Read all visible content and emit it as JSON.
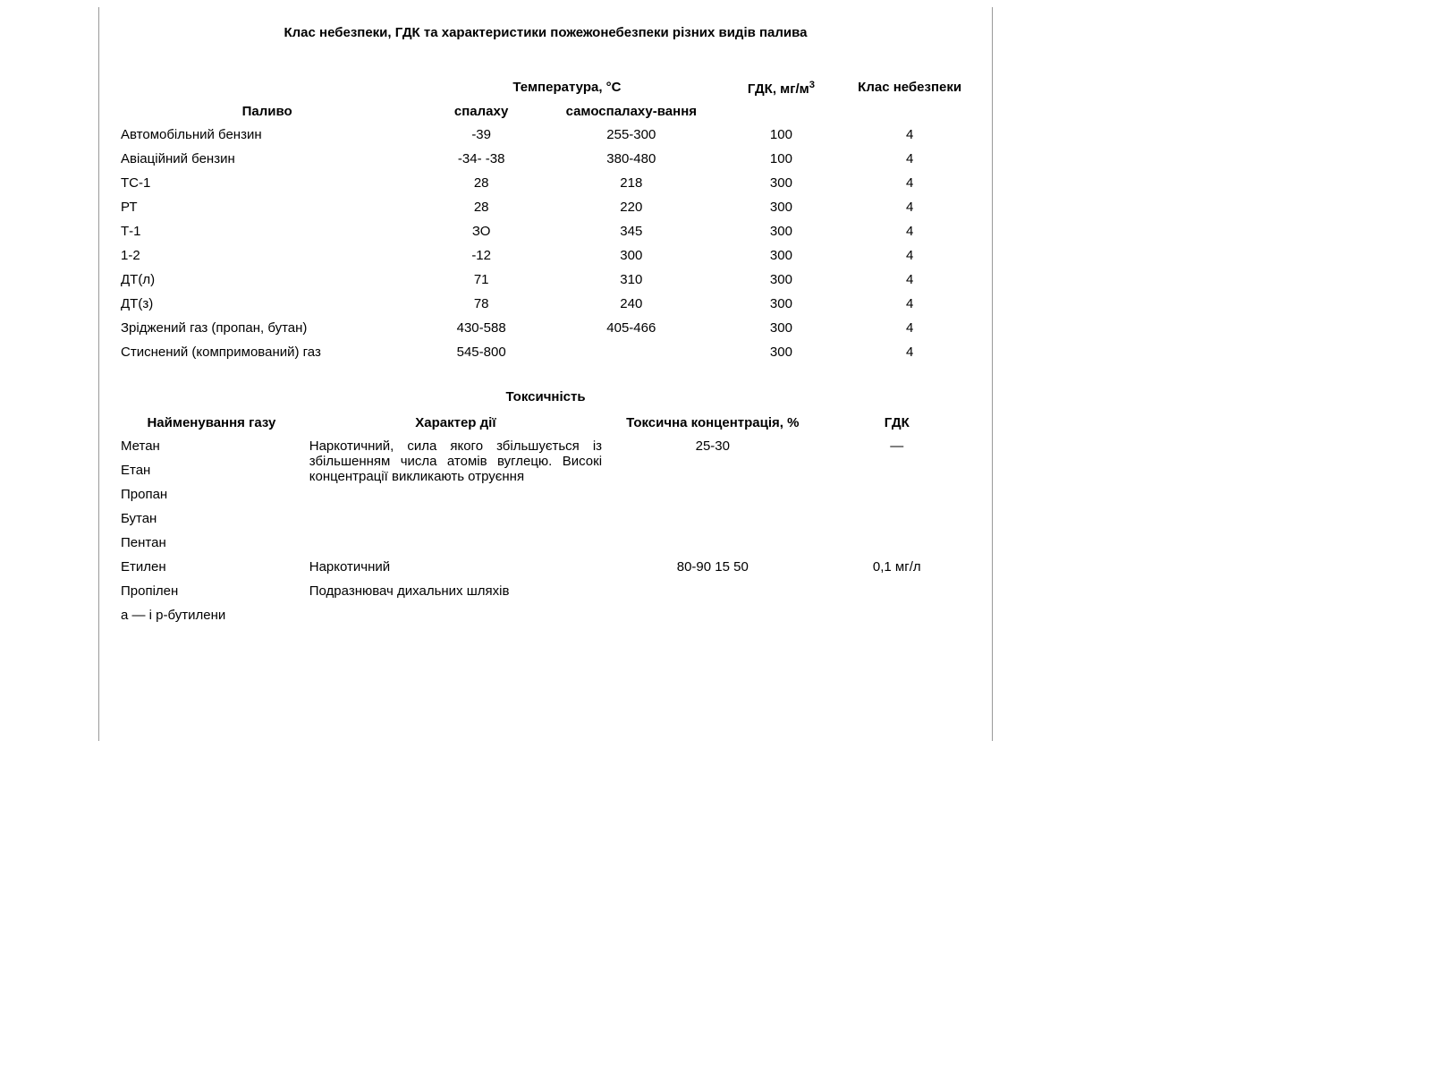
{
  "doc": {
    "title": "Клас небезпеки, ГДК та характеристики пожежонебезпеки різних видів палива",
    "background_color": "#ffffff",
    "text_color": "#000000",
    "border_color": "#999999",
    "font_family": "Arial",
    "base_font_size_pt": 11
  },
  "table1": {
    "type": "table",
    "columns": [
      {
        "key": "fuel",
        "label": "Паливо",
        "align": "left",
        "width": "35%"
      },
      {
        "key": "flash",
        "label": "спалаху",
        "align": "center",
        "width": "15%",
        "group": "temp"
      },
      {
        "key": "autoign",
        "label": "самоспалаху-вання",
        "align": "center",
        "width": "20%",
        "group": "temp"
      },
      {
        "key": "gdk",
        "label": "ГДК, мг/м",
        "label_sup": "3",
        "align": "center",
        "width": "15%"
      },
      {
        "key": "klass",
        "label": "Клас небезпеки",
        "align": "center",
        "width": "15%"
      }
    ],
    "group_temp_label": "Температура, °С",
    "rows": [
      {
        "fuel": "Автомобільний бензин",
        "flash": "-39",
        "autoign": "255-300",
        "gdk": "100",
        "klass": "4"
      },
      {
        "fuel": "Авіаційний бензин",
        "flash": "-34- -38",
        "autoign": "380-480",
        "gdk": "100",
        "klass": "4"
      },
      {
        "fuel": "ТС-1",
        "flash": "28",
        "autoign": "218",
        "gdk": "300",
        "klass": "4"
      },
      {
        "fuel": "РТ",
        "flash": "28",
        "autoign": "220",
        "gdk": "300",
        "klass": "4"
      },
      {
        "fuel": "Т-1",
        "flash": "ЗО",
        "autoign": "345",
        "gdk": "300",
        "klass": "4"
      },
      {
        "fuel": "1-2",
        "flash": "-12",
        "autoign": "300",
        "gdk": "300",
        "klass": "4"
      },
      {
        "fuel": "ДТ(л)",
        "flash": "71",
        "autoign": "310",
        "gdk": "300",
        "klass": "4"
      },
      {
        "fuel": "ДТ(з)",
        "flash": "78",
        "autoign": "240",
        "gdk": "300",
        "klass": "4"
      },
      {
        "fuel": "Зріджений газ (пропан, бутан)",
        "flash": "430-588",
        "autoign": "405-466",
        "gdk": "300",
        "klass": "4"
      },
      {
        "fuel": "Стиснений (компримований) газ",
        "flash": "545-800",
        "autoign": "",
        "gdk": "300",
        "klass": "4"
      }
    ]
  },
  "section2_title": "Токсичність",
  "table2": {
    "type": "table",
    "columns": [
      {
        "key": "gas",
        "label": "Найменування газу",
        "align": "left",
        "width": "22%",
        "header_align": "center"
      },
      {
        "key": "action",
        "label": "Характер дії",
        "align": "left",
        "width": "35%",
        "header_align": "center"
      },
      {
        "key": "conc",
        "label": "Токсична концентрація, %",
        "align": "center",
        "width": "25%",
        "header_align": "center"
      },
      {
        "key": "gdk",
        "label": "ГДК",
        "align": "center",
        "width": "18%",
        "header_align": "center"
      }
    ],
    "group1_action": "Наркотичний, сила якого збільшується із збільшенням числа атомів вуглецю. Високі концентрації викликають отруєння",
    "rows": [
      {
        "gas": "Метан",
        "action_ref": "group1",
        "conc": "25-30",
        "gdk": "—"
      },
      {
        "gas": "Етан",
        "action_ref": "group1",
        "conc": "",
        "gdk": ""
      },
      {
        "gas": "Пропан",
        "action_ref": "group1",
        "conc": "",
        "gdk": ""
      },
      {
        "gas": "Бутан",
        "action_ref": "group1",
        "conc": "",
        "gdk": ""
      },
      {
        "gas": "Пентан",
        "action_ref": "group1",
        "conc": "",
        "gdk": ""
      },
      {
        "gas": "Етилен",
        "action": "Наркотичний",
        "conc": "80-90 15 50",
        "gdk": "0,1 мг/л"
      },
      {
        "gas": "Пропілен",
        "action": "Подразнювач дихальних шляхів",
        "conc": "",
        "gdk": ""
      },
      {
        "gas": "а — і р-бутилени",
        "action": "",
        "conc": "",
        "gdk": ""
      }
    ]
  }
}
